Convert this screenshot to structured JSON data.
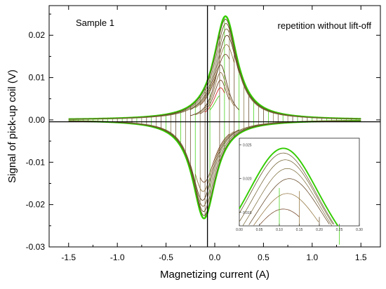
{
  "chart_data": {
    "type": "line",
    "annotations": {
      "left": "Sample 1",
      "right": "repetition without lift-off"
    },
    "xlabel": "Magnetizing current  (A)",
    "ylabel": "Signal of pick-up coil  (V)",
    "xlim": [
      -1.7,
      1.7
    ],
    "ylim": [
      -0.03,
      0.027
    ],
    "x_ticks": [
      -1.5,
      -1.0,
      -0.5,
      0.0,
      0.5,
      1.0,
      1.5
    ],
    "x_tick_labels": [
      "-1.5",
      "-1.0",
      "-0.5",
      "0.0",
      "0.5",
      "1.0",
      "1.5"
    ],
    "y_ticks": [
      -0.03,
      -0.02,
      -0.01,
      0.0,
      0.01,
      0.02
    ],
    "y_tick_labels": [
      "-0.03",
      "-0.02",
      "-0.01",
      "0.00",
      "0.01",
      "0.02"
    ],
    "zero_lines": true,
    "grid": false,
    "legend": "none",
    "colors": {
      "green": "#33cc00",
      "dark": "#6b3a1a",
      "olive": "#7a7a20",
      "red": "#cc1111"
    },
    "loops": [
      {
        "amplitude": 1.5,
        "color": "#33cc00",
        "width": 2.4
      },
      {
        "amplitude": 1.5,
        "color": "#44d611",
        "width": 1.4
      },
      {
        "amplitude": 1.5,
        "color": "#5c4a1e",
        "width": 0.9
      },
      {
        "amplitude": 1.5,
        "color": "#6b5a2a",
        "width": 0.9
      },
      {
        "amplitude": 0.25,
        "color": "#5a3d1a",
        "width": 0.9
      },
      {
        "amplitude": 0.2,
        "color": "#8a6a30",
        "width": 0.8
      },
      {
        "amplitude": 0.15,
        "color": "#6b3a1a",
        "width": 0.8
      },
      {
        "amplitude": 0.1,
        "color": "#cc1111",
        "width": 0.8
      },
      {
        "amplitude": 0.05,
        "color": "#33cc00",
        "width": 0.8
      }
    ],
    "peak_curves": [
      {
        "peak_x": 0.11,
        "peak_y": 0.0245,
        "width": 0.145,
        "amplitude": 1.5,
        "color": "#33cc00",
        "line_width": 2.4
      },
      {
        "peak_x": 0.11,
        "peak_y": 0.0238,
        "width": 0.142,
        "amplitude": 1.5,
        "color": "#5c4a1e",
        "line_width": 0.9
      },
      {
        "peak_x": 0.115,
        "peak_y": 0.0228,
        "width": 0.14,
        "amplitude": 1.5,
        "color": "#6b5a2a",
        "line_width": 0.9
      },
      {
        "peak_x": 0.12,
        "peak_y": 0.0215,
        "width": 0.138,
        "amplitude": 1.5,
        "color": "#7a6a3a",
        "line_width": 0.9
      },
      {
        "peak_x": 0.125,
        "peak_y": 0.02,
        "width": 0.14,
        "amplitude": 0.25,
        "color": "#5a3d1a",
        "line_width": 0.9
      },
      {
        "peak_x": 0.12,
        "peak_y": 0.0178,
        "width": 0.14,
        "amplitude": 0.2,
        "color": "#8a6a30",
        "line_width": 0.8
      },
      {
        "peak_x": 0.11,
        "peak_y": 0.0155,
        "width": 0.14,
        "amplitude": 0.15,
        "color": "#6b3a1a",
        "line_width": 0.8
      }
    ],
    "sweep_lines": {
      "step": 0.05,
      "start": -1.45,
      "end": 1.45,
      "colors": [
        "#5a3d1a",
        "#33cc00",
        "#7a6a3a"
      ]
    },
    "inset": {
      "type": "line",
      "xlim": [
        0.0,
        0.3
      ],
      "ylim": [
        0.013,
        0.026
      ],
      "x_ticks": [
        0.0,
        0.05,
        0.1,
        0.15,
        0.2,
        0.25,
        0.3
      ],
      "x_tick_labels": [
        "0.00",
        "0.05",
        "0.10",
        "0.15",
        "0.20",
        "0.25",
        "0.30"
      ],
      "y_ticks": [
        0.015,
        0.02,
        0.025
      ],
      "y_tick_labels": [
        "0.015",
        "0.020",
        "0.025"
      ],
      "cut_offs": [
        {
          "at": 0.25,
          "color": "#33cc00"
        },
        {
          "at": 0.2,
          "color": "#5a3d1a"
        },
        {
          "at": 0.15,
          "color": "#8a6a30"
        },
        {
          "at": 0.1,
          "color": "#33cc00"
        }
      ]
    }
  }
}
